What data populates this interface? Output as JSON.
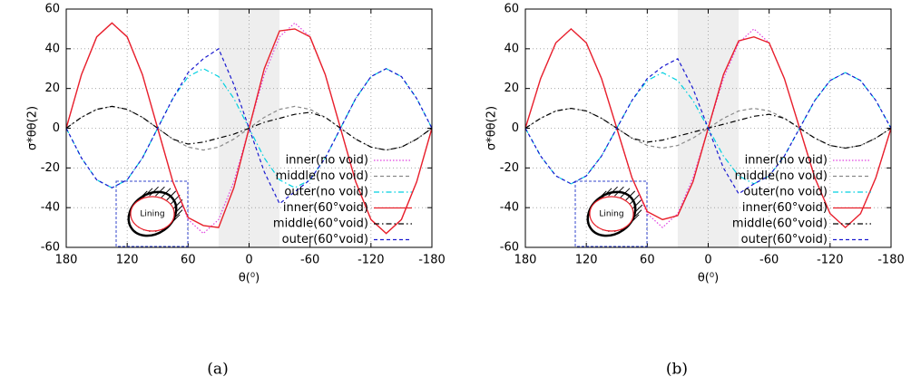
{
  "chart_data": [
    {
      "type": "line",
      "caption": "(a)",
      "xlabel": "θ(⁰)",
      "ylabel": "σ*θθ(2)",
      "inset_label": "Lining",
      "xlim": [
        180,
        -180
      ],
      "ylim": [
        -60,
        60
      ],
      "xticks": [
        180,
        120,
        60,
        0,
        -60,
        -120,
        -180
      ],
      "yticks": [
        -60,
        -40,
        -20,
        0,
        20,
        40,
        60
      ],
      "grid": true,
      "legend": "lower right",
      "shaded_region": [
        30,
        -30
      ],
      "x": [
        180,
        165,
        150,
        135,
        120,
        105,
        90,
        75,
        60,
        45,
        30,
        15,
        0,
        -15,
        -30,
        -45,
        -60,
        -75,
        -90,
        -105,
        -120,
        -135,
        -150,
        -165,
        -180
      ],
      "series": [
        {
          "name": "inner(no void)",
          "color": "#e040e0",
          "style": "dotted",
          "values": [
            0,
            27,
            46,
            53,
            46,
            27,
            0,
            -27,
            -46,
            -53,
            -46,
            -27,
            0,
            27,
            46,
            53,
            46,
            27,
            0,
            -27,
            -46,
            -53,
            -46,
            -27,
            0
          ]
        },
        {
          "name": "middle(no void)",
          "color": "#888888",
          "style": "dashed",
          "values": [
            0,
            5.5,
            9.5,
            11,
            9.5,
            5.5,
            0,
            -5.5,
            -9.5,
            -11,
            -9.5,
            -5.5,
            0,
            5.5,
            9.5,
            11,
            9.5,
            5.5,
            0,
            -5.5,
            -9.5,
            -11,
            -9.5,
            -5.5,
            0
          ]
        },
        {
          "name": "outer(no void)",
          "color": "#00d0e0",
          "style": "dashdot",
          "values": [
            0,
            -15,
            -26,
            -30,
            -26,
            -15,
            0,
            15,
            26,
            30,
            26,
            15,
            0,
            -15,
            -26,
            -30,
            -26,
            -15,
            0,
            15,
            26,
            30,
            26,
            15,
            0
          ]
        },
        {
          "name": "inner(60°void)",
          "color": "#e8202a",
          "style": "solid",
          "values": [
            0,
            27,
            46,
            53,
            46,
            27,
            0,
            -27,
            -45,
            -49,
            -50,
            -30,
            0,
            30,
            49,
            50,
            46,
            27,
            0,
            -27,
            -46,
            -53,
            -46,
            -27,
            0
          ]
        },
        {
          "name": "middle(60°void)",
          "color": "#000000",
          "style": "dashdot",
          "values": [
            0,
            5.5,
            9.5,
            11,
            9.5,
            5.5,
            0,
            -5.5,
            -8,
            -7,
            -5,
            -3,
            0,
            3,
            5,
            7,
            8,
            5.5,
            0,
            -5.5,
            -9.5,
            -11,
            -9.5,
            -5.5,
            0
          ]
        },
        {
          "name": "outer(60°void)",
          "color": "#1a1ad0",
          "style": "dashed",
          "values": [
            0,
            -15,
            -26,
            -30,
            -26,
            -15,
            0,
            15,
            28,
            35,
            40,
            22,
            0,
            -22,
            -38,
            -32,
            -26,
            -15,
            0,
            15,
            26,
            30,
            26,
            15,
            0
          ]
        }
      ]
    },
    {
      "type": "line",
      "caption": "(b)",
      "xlabel": "θ(⁰)",
      "ylabel": "σ*θθ(2)",
      "inset_label": "Lining",
      "xlim": [
        180,
        -180
      ],
      "ylim": [
        -60,
        60
      ],
      "xticks": [
        180,
        120,
        60,
        0,
        -60,
        -120,
        -180
      ],
      "yticks": [
        -60,
        -40,
        -20,
        0,
        20,
        40,
        60
      ],
      "grid": true,
      "legend": "lower right",
      "shaded_region": [
        30,
        -30
      ],
      "x": [
        180,
        165,
        150,
        135,
        120,
        105,
        90,
        75,
        60,
        45,
        30,
        15,
        0,
        -15,
        -30,
        -45,
        -60,
        -75,
        -90,
        -105,
        -120,
        -135,
        -150,
        -165,
        -180
      ],
      "series": [
        {
          "name": "inner(no void)",
          "color": "#e040e0",
          "style": "dotted",
          "values": [
            0,
            25,
            43,
            50,
            43,
            25,
            0,
            -25,
            -43,
            -50,
            -43,
            -25,
            0,
            25,
            43,
            50,
            43,
            25,
            0,
            -25,
            -43,
            -50,
            -43,
            -25,
            0
          ]
        },
        {
          "name": "middle(no void)",
          "color": "#888888",
          "style": "dashed",
          "values": [
            0,
            5,
            8.7,
            10,
            8.7,
            5,
            0,
            -5,
            -8.7,
            -10,
            -8.7,
            -5,
            0,
            5,
            8.7,
            10,
            8.7,
            5,
            0,
            -5,
            -8.7,
            -10,
            -8.7,
            -5,
            0
          ]
        },
        {
          "name": "outer(no void)",
          "color": "#00d0e0",
          "style": "dashdot",
          "values": [
            0,
            -14,
            -24,
            -28,
            -24,
            -14,
            0,
            14,
            24,
            28,
            24,
            14,
            0,
            -14,
            -24,
            -28,
            -24,
            -14,
            0,
            14,
            24,
            28,
            24,
            14,
            0
          ]
        },
        {
          "name": "inner(60°void)",
          "color": "#e8202a",
          "style": "solid",
          "values": [
            0,
            25,
            43,
            50,
            43,
            25,
            0,
            -25,
            -42,
            -46,
            -44,
            -27,
            0,
            27,
            44,
            46,
            43,
            25,
            0,
            -25,
            -43,
            -50,
            -43,
            -25,
            0
          ]
        },
        {
          "name": "middle(60°void)",
          "color": "#000000",
          "style": "dashdot",
          "values": [
            0,
            5,
            8.7,
            10,
            8.7,
            5,
            0,
            -5,
            -7,
            -6,
            -4,
            -2,
            0,
            2,
            4,
            6,
            7,
            5,
            0,
            -5,
            -8.7,
            -10,
            -8.7,
            -5,
            0
          ]
        },
        {
          "name": "outer(60°void)",
          "color": "#1a1ad0",
          "style": "dashed",
          "values": [
            0,
            -14,
            -24,
            -28,
            -24,
            -14,
            0,
            14,
            25,
            31,
            35,
            20,
            0,
            -20,
            -33,
            -28,
            -24,
            -14,
            0,
            14,
            24,
            28,
            24,
            14,
            0
          ]
        }
      ]
    }
  ]
}
